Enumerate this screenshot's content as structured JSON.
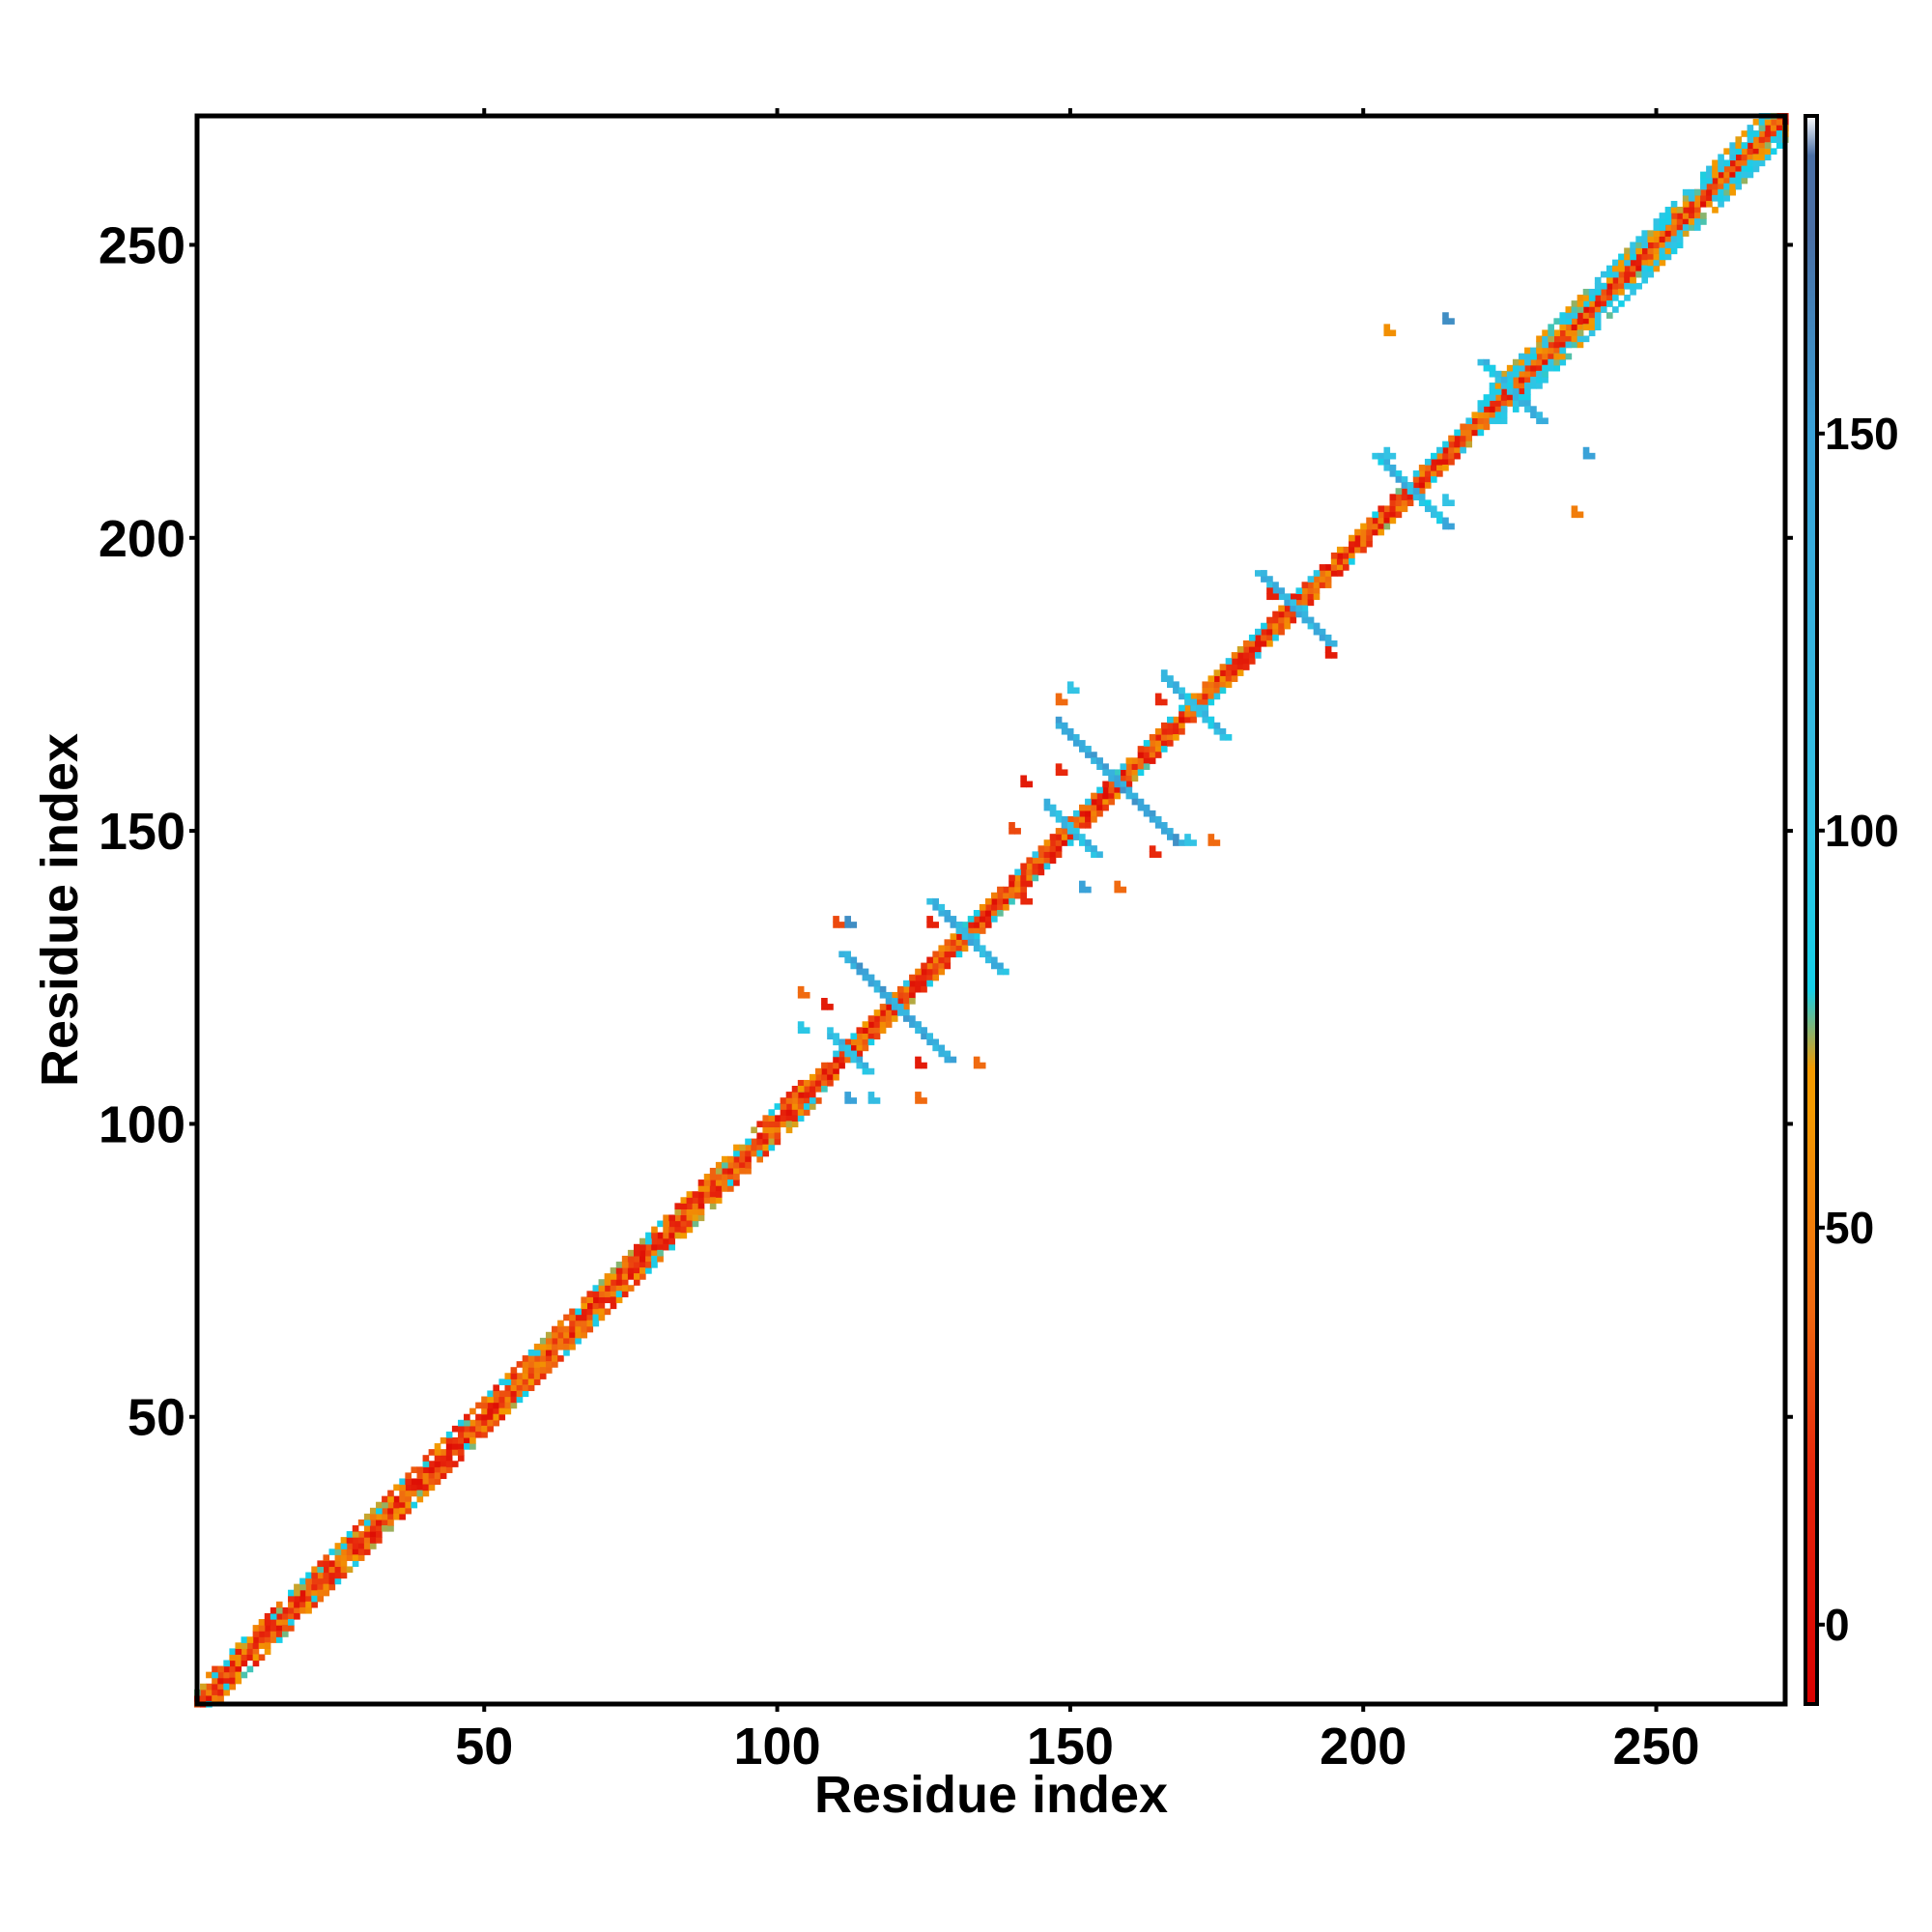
{
  "chart_data": {
    "type": "heatmap",
    "title": "",
    "xlabel": "Residue index",
    "ylabel": "Residue index",
    "xlim": [
      1,
      272
    ],
    "ylim": [
      1,
      272
    ],
    "x_ticks": [
      50,
      100,
      150,
      200,
      250
    ],
    "y_ticks": [
      50,
      100,
      150,
      200,
      250
    ],
    "grid": false,
    "colorbar": {
      "range": [
        -10,
        190
      ],
      "ticks": [
        0,
        50,
        100,
        150
      ],
      "stops": [
        {
          "value": -10,
          "color": "#d90000"
        },
        {
          "value": 20,
          "color": "#e8280c"
        },
        {
          "value": 40,
          "color": "#f06a10"
        },
        {
          "value": 65,
          "color": "#f39a00"
        },
        {
          "value": 70,
          "color": "#f39a00"
        },
        {
          "value": 80,
          "color": "#14d0e8"
        },
        {
          "value": 100,
          "color": "#33c3e4"
        },
        {
          "value": 150,
          "color": "#3aa2d8"
        },
        {
          "value": 175,
          "color": "#4a6fa5"
        },
        {
          "value": 185,
          "color": "#4a6fa5"
        },
        {
          "value": 190,
          "color": "#ffffff"
        }
      ]
    },
    "regions": [
      {
        "kind": "diagonal",
        "from": 1,
        "to": 272,
        "halfwidth": 1,
        "value_min": 0,
        "value_max": 60
      },
      {
        "kind": "band",
        "from": 1,
        "to": 104,
        "offset": 3,
        "value_min": 10,
        "value_max": 90
      },
      {
        "kind": "band",
        "from": 104,
        "to": 272,
        "offset": 2,
        "value_min": 10,
        "value_max": 100
      },
      {
        "kind": "band",
        "from": 220,
        "to": 272,
        "offset": 4,
        "value_min": 60,
        "value_max": 110
      },
      {
        "kind": "cross",
        "center": [
          120,
          120
        ],
        "length": 9,
        "value_min": 110,
        "value_max": 160
      },
      {
        "kind": "cross",
        "center": [
          132,
          132
        ],
        "length": 6,
        "value_min": 90,
        "value_max": 150
      },
      {
        "kind": "cross",
        "center": [
          158,
          158
        ],
        "length": 10,
        "value_min": 120,
        "value_max": 165
      },
      {
        "kind": "cross",
        "center": [
          150,
          150
        ],
        "length": 4,
        "value_min": 90,
        "value_max": 140
      },
      {
        "kind": "cross",
        "center": [
          171,
          171
        ],
        "length": 5,
        "value_min": 80,
        "value_max": 140
      },
      {
        "kind": "cross",
        "center": [
          188,
          188
        ],
        "length": 6,
        "value_min": 100,
        "value_max": 150
      },
      {
        "kind": "cross",
        "center": [
          208,
          208
        ],
        "length": 6,
        "value_min": 80,
        "value_max": 150
      },
      {
        "kind": "cross",
        "center": [
          225,
          225
        ],
        "length": 5,
        "value_min": 80,
        "value_max": 140
      },
      {
        "kind": "cross",
        "center": [
          112,
          112
        ],
        "length": 3,
        "value_min": 90,
        "value_max": 140
      },
      {
        "kind": "spot",
        "x": 104,
        "y": 116,
        "value": 95
      },
      {
        "kind": "spot",
        "x": 104,
        "y": 122,
        "value": 40
      },
      {
        "kind": "spot",
        "x": 108,
        "y": 120,
        "value": 10
      },
      {
        "kind": "spot",
        "x": 110,
        "y": 134,
        "value": 30
      },
      {
        "kind": "spot",
        "x": 112,
        "y": 134,
        "value": 160
      },
      {
        "kind": "spot",
        "x": 112,
        "y": 104,
        "value": 150
      },
      {
        "kind": "spot",
        "x": 116,
        "y": 104,
        "value": 110
      },
      {
        "kind": "spot",
        "x": 124,
        "y": 104,
        "value": 40
      },
      {
        "kind": "spot",
        "x": 124,
        "y": 110,
        "value": 10
      },
      {
        "kind": "spot",
        "x": 134,
        "y": 110,
        "value": 40
      },
      {
        "kind": "spot",
        "x": 126,
        "y": 134,
        "value": 15
      },
      {
        "kind": "spot",
        "x": 142,
        "y": 138,
        "value": 20
      },
      {
        "kind": "spot",
        "x": 140,
        "y": 150,
        "value": 30
      },
      {
        "kind": "spot",
        "x": 142,
        "y": 158,
        "value": 10
      },
      {
        "kind": "spot",
        "x": 148,
        "y": 160,
        "value": 20
      },
      {
        "kind": "spot",
        "x": 148,
        "y": 172,
        "value": 40
      },
      {
        "kind": "spot",
        "x": 150,
        "y": 174,
        "value": 100
      },
      {
        "kind": "spot",
        "x": 152,
        "y": 140,
        "value": 150
      },
      {
        "kind": "spot",
        "x": 158,
        "y": 140,
        "value": 40
      },
      {
        "kind": "spot",
        "x": 164,
        "y": 146,
        "value": 20
      },
      {
        "kind": "spot",
        "x": 165,
        "y": 172,
        "value": 20
      },
      {
        "kind": "spot",
        "x": 166,
        "y": 176,
        "value": 120
      },
      {
        "kind": "spot",
        "x": 170,
        "y": 148,
        "value": 100
      },
      {
        "kind": "spot",
        "x": 174,
        "y": 148,
        "value": 40
      },
      {
        "kind": "spot",
        "x": 184,
        "y": 190,
        "value": 15
      },
      {
        "kind": "spot",
        "x": 194,
        "y": 180,
        "value": 10
      },
      {
        "kind": "spot",
        "x": 204,
        "y": 235,
        "value": 60
      },
      {
        "kind": "spot",
        "x": 204,
        "y": 214,
        "value": 100
      },
      {
        "kind": "spot",
        "x": 214,
        "y": 206,
        "value": 100
      },
      {
        "kind": "spot",
        "x": 214,
        "y": 237,
        "value": 160
      },
      {
        "kind": "spot",
        "x": 236,
        "y": 204,
        "value": 50
      },
      {
        "kind": "spot",
        "x": 238,
        "y": 214,
        "value": 150
      }
    ]
  }
}
